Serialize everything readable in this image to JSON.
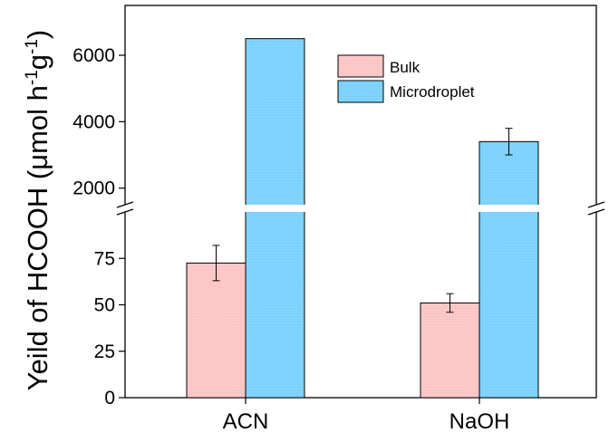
{
  "chart_data": {
    "type": "bar",
    "ylabel": "Yeild of HCOOH (μmol h",
    "ylabel_unit_sup1": "-1",
    "ylabel_unit_mid": "g",
    "ylabel_unit_sup2": "-1",
    "ylabel_close": ")",
    "categories": [
      "ACN",
      "NaOH"
    ],
    "series": [
      {
        "name": "Bulk",
        "color": "#ffc8c8",
        "values": [
          72.5,
          51
        ],
        "errors": [
          9.5,
          5
        ]
      },
      {
        "name": "Microdroplet",
        "color": "#80d4ff",
        "values": [
          6500,
          3400
        ],
        "errors": [
          0,
          400
        ]
      }
    ],
    "y_axis_broken": true,
    "lower_segment": {
      "ylim": [
        0,
        100
      ],
      "ticks": [
        0,
        25,
        50,
        75
      ]
    },
    "upper_segment": {
      "ylim": [
        1500,
        7500
      ],
      "ticks": [
        2000,
        4000,
        6000
      ]
    },
    "legend_position": "top-right",
    "grid": false
  }
}
